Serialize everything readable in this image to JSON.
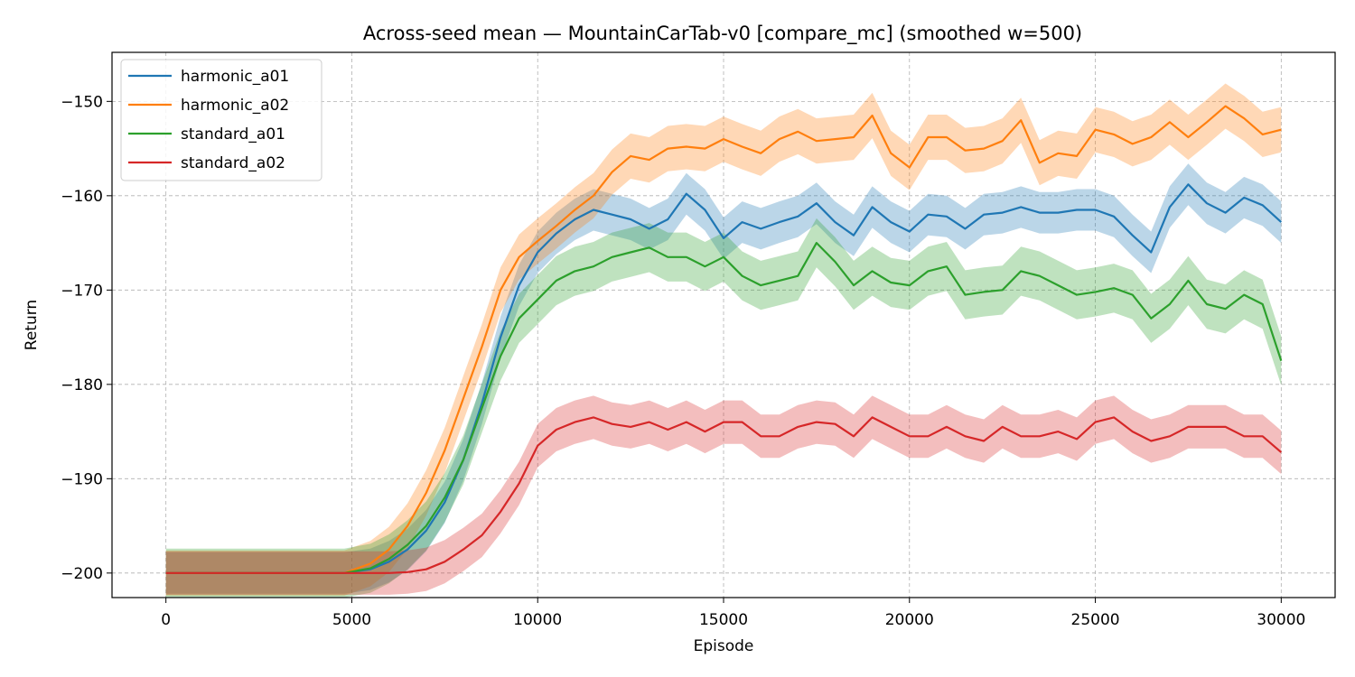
{
  "chart_data": {
    "type": "line",
    "title": "Across-seed mean — MountainCarTab-v0 [compare_mc] (smoothed w=500)",
    "xlabel": "Episode",
    "ylabel": "Return",
    "xlim": [
      -1450,
      31450
    ],
    "ylim": [
      -202.6,
      -144.8
    ],
    "xticks": [
      0,
      5000,
      10000,
      15000,
      20000,
      25000,
      30000
    ],
    "xtick_labels": [
      "0",
      "5000",
      "10000",
      "15000",
      "20000",
      "25000",
      "30000"
    ],
    "yticks": [
      -200,
      -190,
      -180,
      -170,
      -160,
      -150
    ],
    "ytick_labels": [
      "−200",
      "−190",
      "−180",
      "−170",
      "−160",
      "−150"
    ],
    "grid": true,
    "legend_position": "top-left",
    "series": [
      {
        "name": "harmonic_a01",
        "color": "#1f77b4",
        "x": [
          0,
          4800,
          5500,
          6000,
          6500,
          7000,
          7500,
          8000,
          8500,
          9000,
          9500,
          10000,
          10500,
          11000,
          11500,
          12000,
          12500,
          13000,
          13500,
          14000,
          14500,
          15000,
          15500,
          16000,
          16500,
          17000,
          17500,
          18000,
          18500,
          19000,
          19500,
          20000,
          20500,
          21000,
          21500,
          22000,
          22500,
          23000,
          23500,
          24000,
          24500,
          25000,
          25500,
          26000,
          26500,
          27000,
          27500,
          28000,
          28500,
          29000,
          29500,
          30000
        ],
        "y": [
          -200,
          -200,
          -199.6,
          -198.8,
          -197.5,
          -195.5,
          -192.5,
          -188,
          -182,
          -175,
          -169.5,
          -166,
          -164,
          -162.5,
          -161.5,
          -162,
          -162.5,
          -163.5,
          -162.5,
          -159.8,
          -161.5,
          -164.5,
          -162.8,
          -163.5,
          -162.8,
          -162.2,
          -160.8,
          -162.8,
          -164.2,
          -161.2,
          -162.8,
          -163.8,
          -162,
          -162.2,
          -163.5,
          -162,
          -161.8,
          -161.2,
          -161.8,
          -161.8,
          -161.5,
          -161.5,
          -162.2,
          -164.2,
          -166,
          -161.2,
          -158.8,
          -160.8,
          -161.8,
          -160.2,
          -161,
          -162.8
        ],
        "band": [
          2.2,
          2.2,
          2.2,
          2.2,
          2.2,
          2.2,
          2.2,
          2.2,
          2.2,
          2.2,
          2.2,
          2.2,
          2.2,
          2.2,
          2.2,
          2.2,
          2.2,
          2.2,
          2.2,
          2.2,
          2.2,
          2.2,
          2.2,
          2.2,
          2.2,
          2.2,
          2.2,
          2.2,
          2.2,
          2.2,
          2.2,
          2.2,
          2.2,
          2.2,
          2.2,
          2.2,
          2.2,
          2.2,
          2.2,
          2.2,
          2.2,
          2.2,
          2.2,
          2.2,
          2.2,
          2.2,
          2.2,
          2.2,
          2.2,
          2.2,
          2.2,
          2.2
        ]
      },
      {
        "name": "harmonic_a02",
        "color": "#ff7f0e",
        "x": [
          0,
          4800,
          5500,
          6000,
          6500,
          7000,
          7500,
          8000,
          8500,
          9000,
          9500,
          10000,
          10500,
          11000,
          11500,
          12000,
          12500,
          13000,
          13500,
          14000,
          14500,
          15000,
          15500,
          16000,
          16500,
          17000,
          17500,
          18000,
          18500,
          19000,
          19500,
          20000,
          20500,
          21000,
          21500,
          22000,
          22500,
          23000,
          23500,
          24000,
          24500,
          25000,
          25500,
          26000,
          26500,
          27000,
          27500,
          28000,
          28500,
          29000,
          29500,
          30000
        ],
        "y": [
          -200,
          -200,
          -199,
          -197.5,
          -195,
          -191.5,
          -187,
          -181.5,
          -176,
          -170,
          -166.5,
          -164.8,
          -163.2,
          -161.5,
          -160,
          -157.5,
          -155.8,
          -156.2,
          -155,
          -154.8,
          -155,
          -154,
          -154.8,
          -155.5,
          -154,
          -153.2,
          -154.2,
          -154,
          -153.8,
          -151.5,
          -155.5,
          -157,
          -153.8,
          -153.8,
          -155.2,
          -155,
          -154.2,
          -152,
          -156.5,
          -155.5,
          -155.8,
          -153,
          -153.5,
          -154.5,
          -153.8,
          -152.2,
          -153.8,
          -152.2,
          -150.5,
          -151.8,
          -153.5,
          -153
        ],
        "band": [
          2.4,
          2.4,
          2.4,
          2.4,
          2.4,
          2.4,
          2.4,
          2.4,
          2.4,
          2.4,
          2.4,
          2.4,
          2.4,
          2.4,
          2.4,
          2.4,
          2.4,
          2.4,
          2.4,
          2.4,
          2.4,
          2.4,
          2.4,
          2.4,
          2.4,
          2.4,
          2.4,
          2.4,
          2.4,
          2.4,
          2.4,
          2.4,
          2.4,
          2.4,
          2.4,
          2.4,
          2.4,
          2.4,
          2.4,
          2.4,
          2.4,
          2.4,
          2.4,
          2.4,
          2.4,
          2.4,
          2.4,
          2.4,
          2.4,
          2.4,
          2.4,
          2.4
        ]
      },
      {
        "name": "standard_a01",
        "color": "#2ca02c",
        "x": [
          0,
          4800,
          5500,
          6000,
          6500,
          7000,
          7500,
          8000,
          8500,
          9000,
          9500,
          10000,
          10500,
          11000,
          11500,
          12000,
          12500,
          13000,
          13500,
          14000,
          14500,
          15000,
          15500,
          16000,
          16500,
          17000,
          17500,
          18000,
          18500,
          19000,
          19500,
          20000,
          20500,
          21000,
          21500,
          22000,
          22500,
          23000,
          23500,
          24000,
          24500,
          25000,
          25500,
          26000,
          26500,
          27000,
          27500,
          28000,
          28500,
          29000,
          29500,
          30000
        ],
        "y": [
          -200,
          -200,
          -199.5,
          -198.5,
          -197,
          -195,
          -192,
          -188,
          -182.5,
          -177,
          -173,
          -171,
          -169,
          -168,
          -167.5,
          -166.5,
          -166,
          -165.5,
          -166.5,
          -166.5,
          -167.5,
          -166.5,
          -168.5,
          -169.5,
          -169,
          -168.5,
          -165,
          -167,
          -169.5,
          -168,
          -169.2,
          -169.5,
          -168,
          -167.5,
          -170.5,
          -170.2,
          -170,
          -168,
          -168.5,
          -169.5,
          -170.5,
          -170.2,
          -169.8,
          -170.5,
          -173,
          -171.5,
          -169,
          -171.5,
          -172,
          -170.5,
          -171.5,
          -177.5
        ],
        "band": [
          2.6,
          2.6,
          2.6,
          2.6,
          2.6,
          2.6,
          2.6,
          2.6,
          2.6,
          2.6,
          2.6,
          2.6,
          2.6,
          2.6,
          2.6,
          2.6,
          2.6,
          2.6,
          2.6,
          2.6,
          2.6,
          2.6,
          2.6,
          2.6,
          2.6,
          2.6,
          2.6,
          2.6,
          2.6,
          2.6,
          2.6,
          2.6,
          2.6,
          2.6,
          2.6,
          2.6,
          2.6,
          2.6,
          2.6,
          2.6,
          2.6,
          2.6,
          2.6,
          2.6,
          2.6,
          2.6,
          2.6,
          2.6,
          2.6,
          2.6,
          2.6,
          2.6
        ]
      },
      {
        "name": "standard_a02",
        "color": "#d62728",
        "x": [
          0,
          6000,
          6500,
          7000,
          7500,
          8000,
          8500,
          9000,
          9500,
          10000,
          10500,
          11000,
          11500,
          12000,
          12500,
          13000,
          13500,
          14000,
          14500,
          15000,
          15500,
          16000,
          16500,
          17000,
          17500,
          18000,
          18500,
          19000,
          19500,
          20000,
          20500,
          21000,
          21500,
          22000,
          22500,
          23000,
          23500,
          24000,
          24500,
          25000,
          25500,
          26000,
          26500,
          27000,
          27500,
          28000,
          28500,
          29000,
          29500,
          30000
        ],
        "y": [
          -200,
          -200,
          -199.9,
          -199.6,
          -198.8,
          -197.5,
          -196,
          -193.5,
          -190.5,
          -186.5,
          -184.8,
          -184,
          -183.5,
          -184.2,
          -184.5,
          -184,
          -184.8,
          -184,
          -185,
          -184,
          -184,
          -185.5,
          -185.5,
          -184.5,
          -184,
          -184.2,
          -185.5,
          -183.5,
          -184.5,
          -185.5,
          -185.5,
          -184.5,
          -185.5,
          -186,
          -184.5,
          -185.5,
          -185.5,
          -185,
          -185.8,
          -184,
          -183.5,
          -185,
          -186,
          -185.5,
          -184.5,
          -184.5,
          -184.5,
          -185.5,
          -185.5,
          -187.2
        ],
        "band": [
          2.3,
          2.3,
          2.3,
          2.3,
          2.3,
          2.3,
          2.3,
          2.3,
          2.3,
          2.3,
          2.3,
          2.3,
          2.3,
          2.3,
          2.3,
          2.3,
          2.3,
          2.3,
          2.3,
          2.3,
          2.3,
          2.3,
          2.3,
          2.3,
          2.3,
          2.3,
          2.3,
          2.3,
          2.3,
          2.3,
          2.3,
          2.3,
          2.3,
          2.3,
          2.3,
          2.3,
          2.3,
          2.3,
          2.3,
          2.3,
          2.3,
          2.3,
          2.3,
          2.3,
          2.3,
          2.3,
          2.3,
          2.3,
          2.3,
          2.3
        ]
      }
    ]
  }
}
